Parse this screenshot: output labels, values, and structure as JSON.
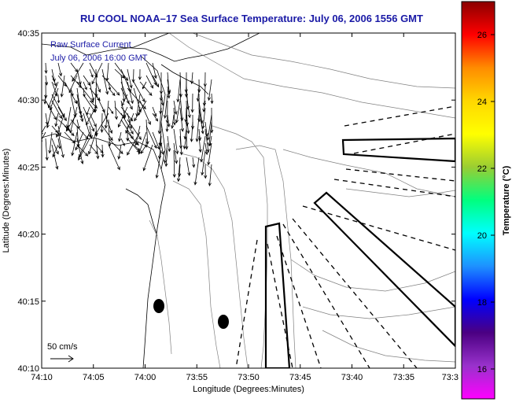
{
  "title": "RU COOL  NOAA–17  Sea Surface Temperature:  July 06, 2006 1556 GMT",
  "annotation": {
    "line1": "Raw Surface Current",
    "line2": "July 06, 2006 16:00 GMT"
  },
  "axes": {
    "xlabel": "Longitude (Degrees:Minutes)",
    "ylabel": "Latitude (Degrees:Minutes)",
    "xticks": [
      "74:10",
      "74:05",
      "74:00",
      "73:55",
      "73:50",
      "73:45",
      "73:40",
      "73:35",
      "73:3"
    ],
    "yticks": [
      "40:35",
      "40:30",
      "40:25",
      "40:20",
      "40:15",
      "40:10"
    ]
  },
  "scale": {
    "label": "50 cm/s"
  },
  "colorbar": {
    "title": "Temperature (°C)",
    "ticks": [
      "26",
      "24",
      "22",
      "20",
      "18",
      "16"
    ],
    "colors": [
      "#8b0000",
      "#ff0000",
      "#ff8c00",
      "#ffd700",
      "#ffff00",
      "#9acd32",
      "#00ff7f",
      "#00ffff",
      "#1e90ff",
      "#0000ff",
      "#4b0082",
      "#9932cc",
      "#ff00ff"
    ]
  },
  "stations": [
    "dot-north",
    "dot-south"
  ]
}
